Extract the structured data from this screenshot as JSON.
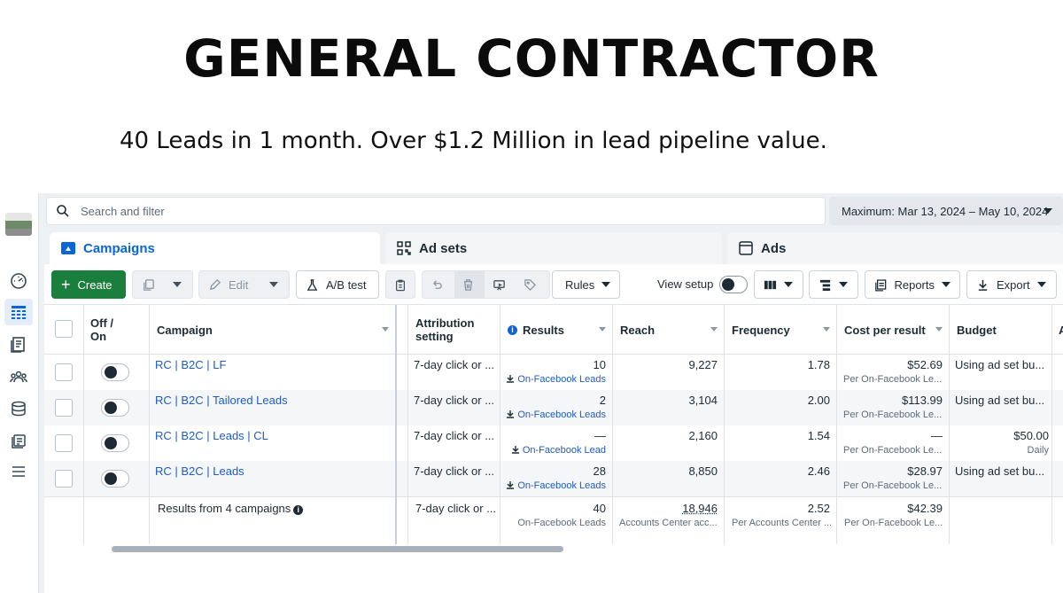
{
  "headline": "GENERAL CONTRACTOR",
  "subhead": "40 Leads in 1 month. Over $1.2 Million in lead pipeline value.",
  "search": {
    "placeholder": "Search and filter"
  },
  "date_range": "Maximum: Mar 13, 2024 – May 10, 2024",
  "tabs": {
    "campaigns": "Campaigns",
    "ad_sets": "Ad sets",
    "ads": "Ads"
  },
  "toolbar": {
    "create": "Create",
    "edit": "Edit",
    "ab_test": "A/B test",
    "rules": "Rules",
    "view_setup": "View setup",
    "reports": "Reports",
    "export": "Export"
  },
  "columns": {
    "off_on": "Off / On",
    "campaign": "Campaign",
    "attribution": "Attribution setting",
    "results": "Results",
    "reach": "Reach",
    "frequency": "Frequency",
    "cost_per_result": "Cost per result",
    "budget": "Budget",
    "next_col": "A"
  },
  "rows": [
    {
      "campaign": "RC | B2C | LF",
      "attribution": "7-day click or ...",
      "results": "10",
      "results_sub": "On-Facebook Leads",
      "reach": "9,227",
      "frequency": "1.78",
      "cost": "$52.69",
      "cost_sub": "Per On-Facebook Le...",
      "budget": "Using ad set bu...",
      "budget_sub": ""
    },
    {
      "campaign": "RC | B2C | Tailored Leads",
      "attribution": "7-day click or ...",
      "results": "2",
      "results_sub": "On-Facebook Leads",
      "reach": "3,104",
      "frequency": "2.00",
      "cost": "$113.99",
      "cost_sub": "Per On-Facebook Le...",
      "budget": "Using ad set bu...",
      "budget_sub": ""
    },
    {
      "campaign": "RC | B2C | Leads | CL",
      "attribution": "7-day click or ...",
      "results": "—",
      "results_sub": "On-Facebook Lead",
      "reach": "2,160",
      "frequency": "1.54",
      "cost": "—",
      "cost_sub": "Per On-Facebook Le...",
      "budget": "$50.00",
      "budget_sub": "Daily"
    },
    {
      "campaign": "RC | B2C | Leads",
      "attribution": "7-day click or ...",
      "results": "28",
      "results_sub": "On-Facebook Leads",
      "reach": "8,850",
      "frequency": "2.46",
      "cost": "$28.97",
      "cost_sub": "Per On-Facebook Le...",
      "budget": "Using ad set bu...",
      "budget_sub": ""
    }
  ],
  "summary": {
    "label": "Results from 4 campaigns",
    "attribution": "7-day click or ...",
    "results": "40",
    "results_sub": "On-Facebook Leads",
    "reach": "18,946",
    "reach_sub": "Accounts Center acc...",
    "frequency": "2.52",
    "frequency_sub": "Per Accounts Center ...",
    "cost": "$42.39",
    "cost_sub": "Per On-Facebook Le..."
  },
  "colors": {
    "accent": "#0a66d8",
    "create_green": "#1a7f3c",
    "link": "#1e5bc6"
  }
}
